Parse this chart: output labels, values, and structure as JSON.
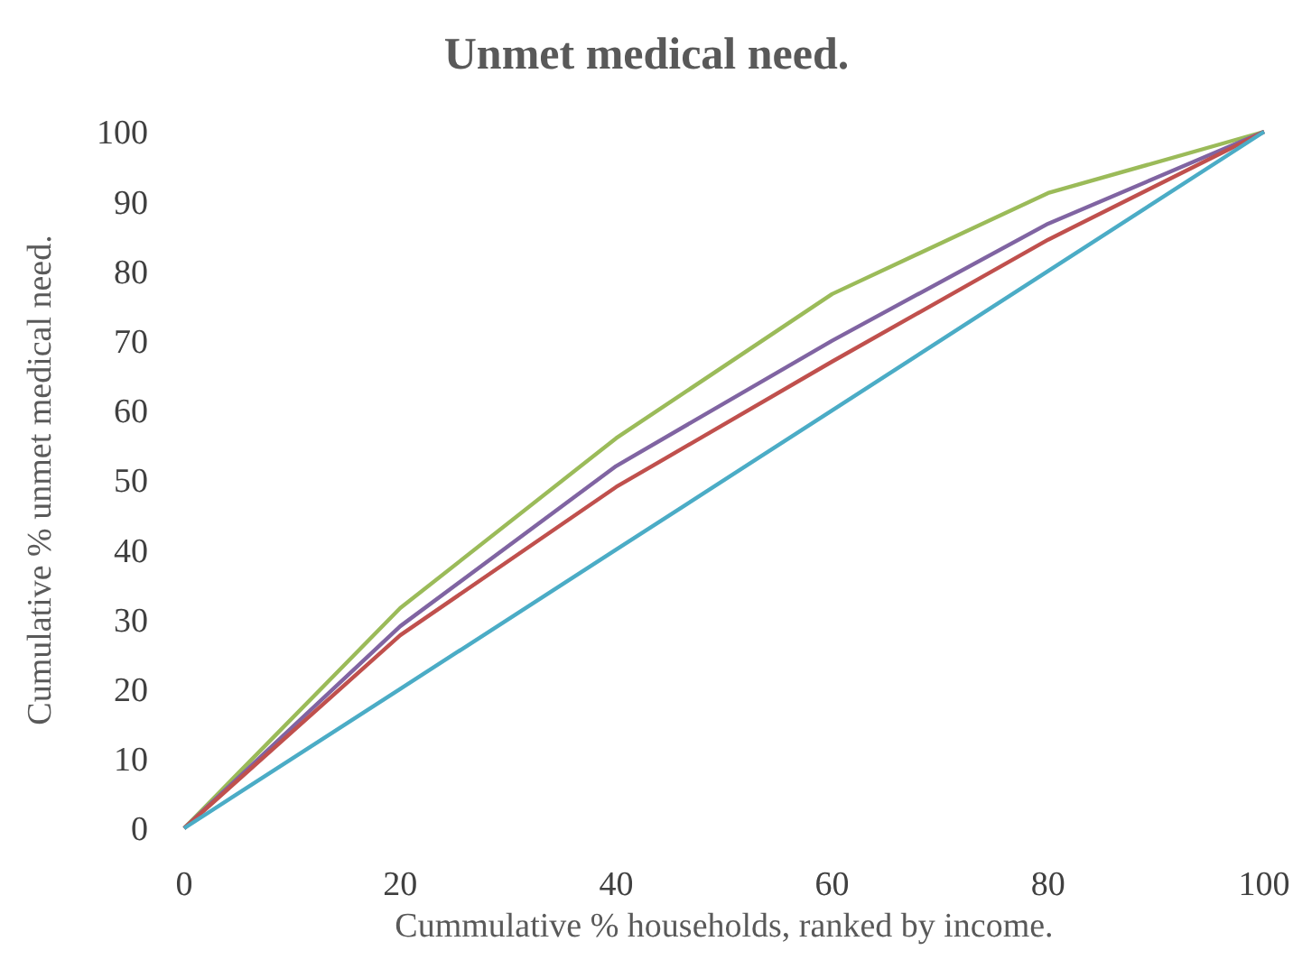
{
  "chart_data": {
    "type": "line",
    "title": "Unmet medical need.",
    "xlabel": "Cummulative % households, ranked by income.",
    "ylabel": "Cumulative % unmet medical need.",
    "x": [
      0,
      20,
      40,
      60,
      80,
      100
    ],
    "series": [
      {
        "color": "#9bbb59",
        "values": [
          0,
          31.6,
          56,
          76.7,
          91.2,
          100
        ]
      },
      {
        "color": "#8064a2",
        "values": [
          0,
          29,
          52,
          70,
          86.8,
          100
        ]
      },
      {
        "color": "#c0504d",
        "values": [
          0,
          27.7,
          49,
          67,
          84.5,
          100
        ]
      },
      {
        "color": "#4bacc6",
        "values": [
          0,
          20,
          40,
          60,
          80,
          100
        ]
      }
    ],
    "xlim": [
      0,
      100
    ],
    "ylim": [
      0,
      100
    ],
    "xticks": [
      0,
      20,
      40,
      60,
      80,
      100
    ],
    "yticks": [
      0,
      10,
      20,
      30,
      40,
      50,
      60,
      70,
      80,
      90,
      100
    ],
    "grid": false,
    "marker": "none",
    "line_style": "solid"
  }
}
